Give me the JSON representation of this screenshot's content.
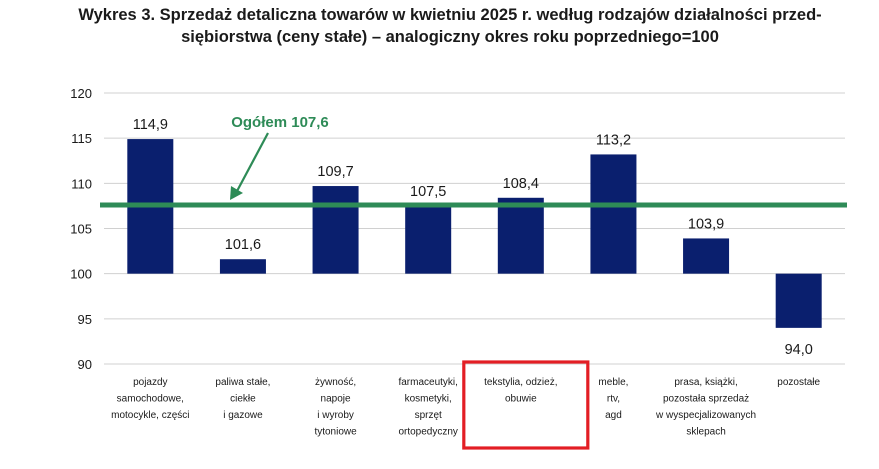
{
  "title": {
    "line1": "Wykres 3. Sprzedaż detaliczna towarów w kwietniu 2025 r. według rodzajów działalności przed-",
    "line2": "siębiorstwa (ceny stałe) – analogiczny okres roku poprzedniego=100"
  },
  "chart_data": {
    "type": "bar",
    "title": "Wykres 3. Sprzedaż detaliczna towarów w kwietniu 2025 r. według rodzajów działalności przedsiębiorstwa (ceny stałe) – analogiczny okres roku poprzedniego=100",
    "categories": [
      [
        "pojazdy",
        "samochodowe,",
        "motocykle,  części"
      ],
      [
        "paliwa stałe,",
        "ciekłe",
        "i gazowe"
      ],
      [
        "żywność,",
        "napoje",
        "i wyroby",
        "tytoniowe"
      ],
      [
        "farmaceutyki,",
        "kosmetyki,",
        "sprzęt",
        "ortopedyczny"
      ],
      [
        "tekstylia,  odzież,",
        "obuwie"
      ],
      [
        "meble,",
        "rtv,",
        "agd"
      ],
      [
        "prasa, książki,",
        "pozostała sprzedaż",
        "w wyspecjalizowanych",
        "sklepach"
      ],
      [
        "pozostałe"
      ]
    ],
    "values": [
      114.9,
      101.6,
      109.7,
      107.5,
      108.4,
      113.2,
      103.9,
      94.0
    ],
    "value_labels": [
      "114,9",
      "101,6",
      "109,7",
      "107,5",
      "108,4",
      "113,2",
      "103,9",
      "94,0"
    ],
    "base": 100,
    "ylim": [
      90,
      120
    ],
    "yticks": [
      90,
      95,
      100,
      105,
      110,
      115,
      120
    ],
    "grid": true,
    "reference_line": {
      "value": 107.6,
      "label": "Ogółem 107,6"
    },
    "highlighted_category_index": 4,
    "colors": {
      "bar": "#0a1f6e",
      "reference": "#2e8b57",
      "highlight": "#e31e24",
      "grid": "#d0d0d0",
      "text": "#1a1a1a"
    }
  }
}
